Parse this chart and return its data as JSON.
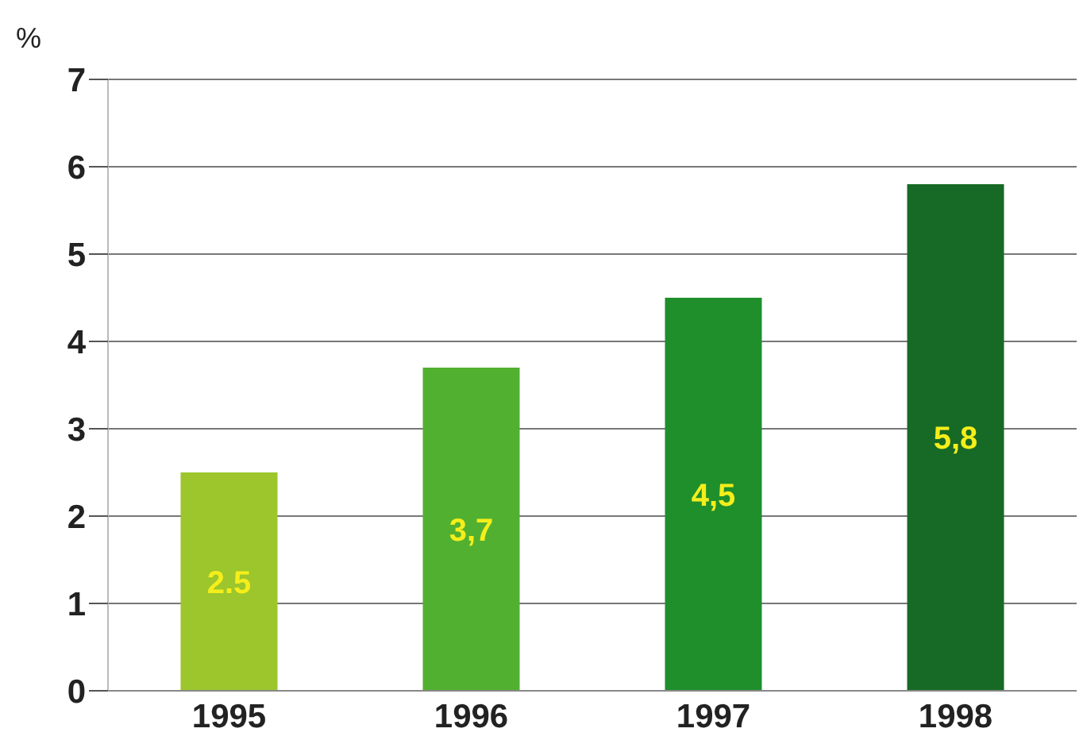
{
  "chart_data": {
    "type": "bar",
    "ylabel": "%",
    "categories": [
      "1995",
      "1996",
      "1997",
      "1998"
    ],
    "values": [
      2.5,
      3.7,
      4.5,
      5.8
    ],
    "colors": [
      "#9cc62b",
      "#52b030",
      "#1f8f2c",
      "#166a25"
    ],
    "value_labels": [
      "2.5",
      "3,7",
      "4,5",
      "5,8"
    ],
    "ylim": [
      0,
      7
    ],
    "yticks": [
      0,
      1,
      2,
      3,
      4,
      5,
      6,
      7
    ],
    "grid": "y"
  }
}
